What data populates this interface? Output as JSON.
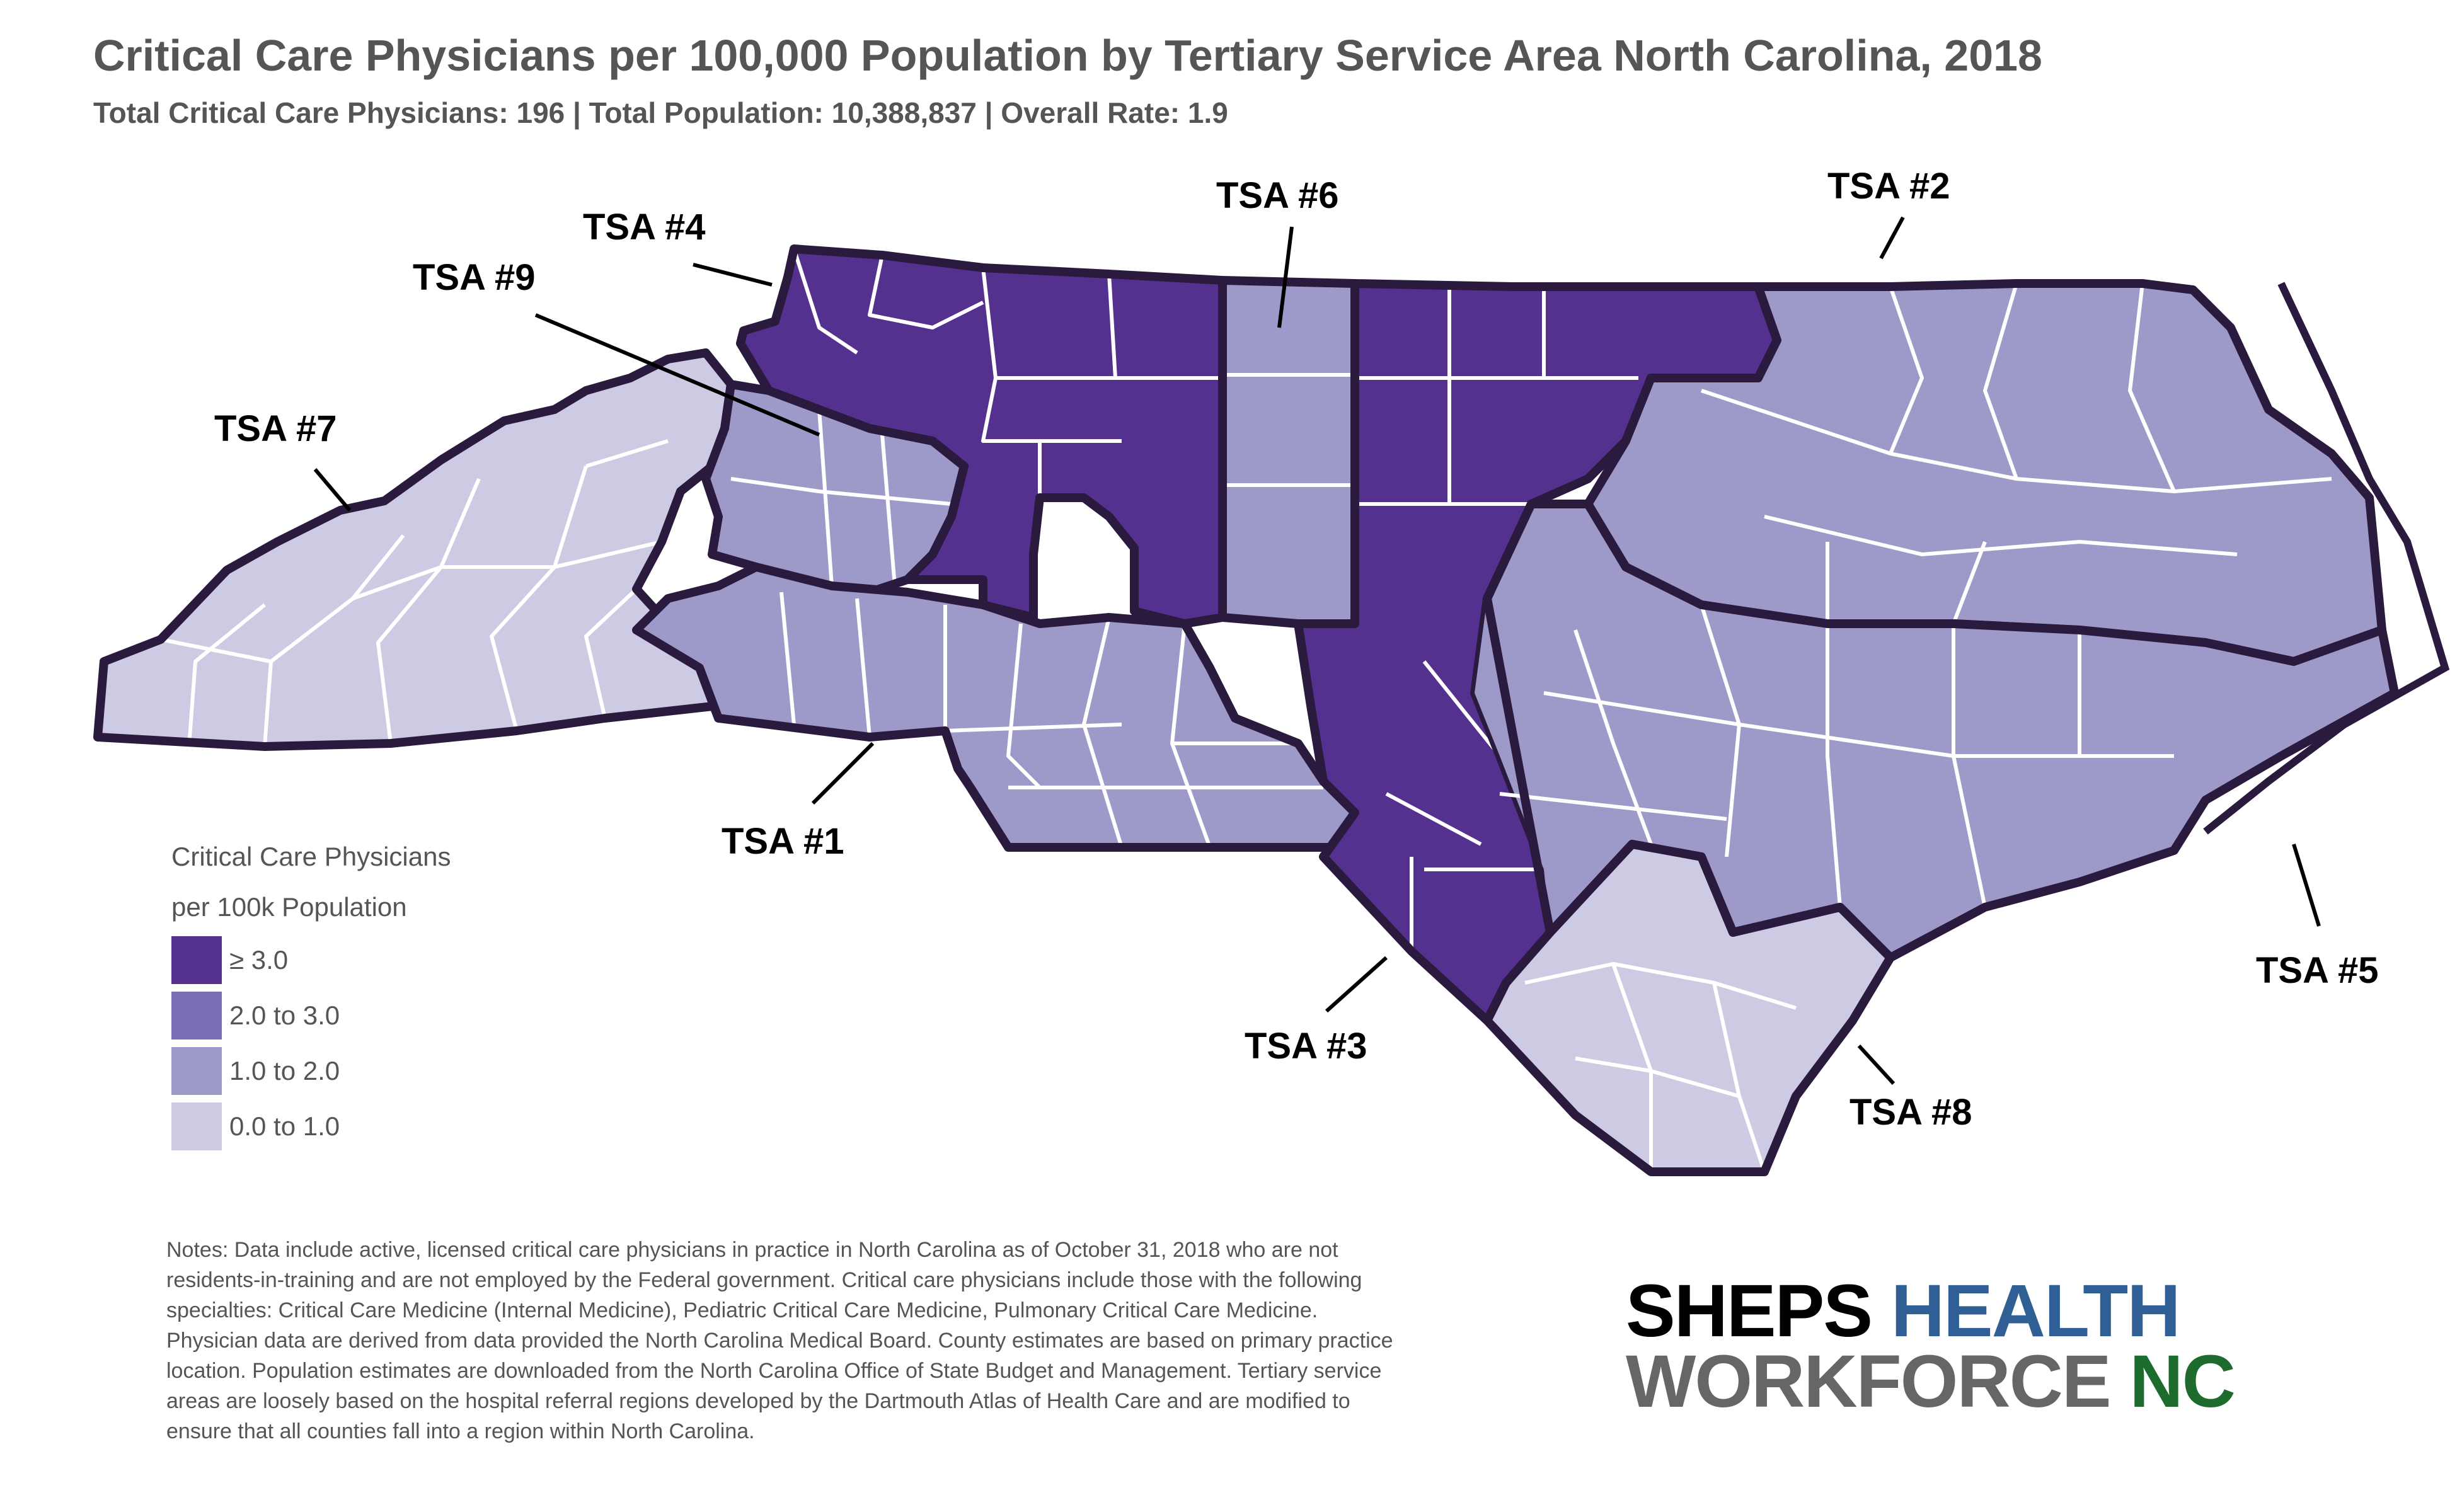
{
  "title": "Critical Care Physicians per 100,000 Population by Tertiary Service Area  North Carolina, 2018",
  "subtitle": "Total Critical Care Physicians: 196 | Total Population: 10,388,837 | Overall Rate: 1.9",
  "colors": {
    "c1": "#54308f",
    "c2": "#7b6db3",
    "c3": "#9d9ac9",
    "c4": "#cdcbe3",
    "outline": "#2a1a3e",
    "county_border": "#ffffff"
  },
  "map": {
    "regions": [
      {
        "name": "TSA #1",
        "class": "1.0 to 2.0"
      },
      {
        "name": "TSA #2",
        "class": "1.0 to 2.0"
      },
      {
        "name": "TSA #3",
        "class": "≥ 3.0"
      },
      {
        "name": "TSA #4",
        "class": "≥ 3.0"
      },
      {
        "name": "TSA #5",
        "class": "1.0 to 2.0"
      },
      {
        "name": "TSA #6",
        "class": "1.0 to 2.0"
      },
      {
        "name": "TSA #7",
        "class": "0.0 to 1.0"
      },
      {
        "name": "TSA #8",
        "class": "0.0 to 1.0"
      },
      {
        "name": "TSA #9",
        "class": "1.0 to 2.0"
      }
    ]
  },
  "legend": {
    "title_line1": "Critical Care Physicians",
    "title_line2": "per 100k Population",
    "items": [
      {
        "label": "≥ 3.0",
        "color": "#54308f"
      },
      {
        "label": "2.0 to 3.0",
        "color": "#7b6db3"
      },
      {
        "label": "1.0 to 2.0",
        "color": "#9d9ac9"
      },
      {
        "label": "0.0 to 1.0",
        "color": "#cdcbe3"
      }
    ]
  },
  "notes": "Notes: Data include active, licensed critical care physicians in practice in North Carolina as of October 31, 2018 who are not residents-in-training and are not employed by the Federal government. Critical care physicians include those with the following specialties: Critical Care Medicine (Internal Medicine), Pediatric Critical Care Medicine, Pulmonary Critical Care Medicine. Physician data are derived from data provided the North Carolina Medical Board. County estimates are based on primary practice location. Population estimates are downloaded from the North Carolina Office of State Budget and Management. Tertiary service areas are loosely based on the hospital referral regions developed by the Dartmouth Atlas of Health Care and are modified to ensure that all counties fall into a region within North Carolina.",
  "logo": {
    "word1": "SHEPS",
    "word2": "HEALTH",
    "word3": "WORKFORCE",
    "word4": "NC"
  }
}
